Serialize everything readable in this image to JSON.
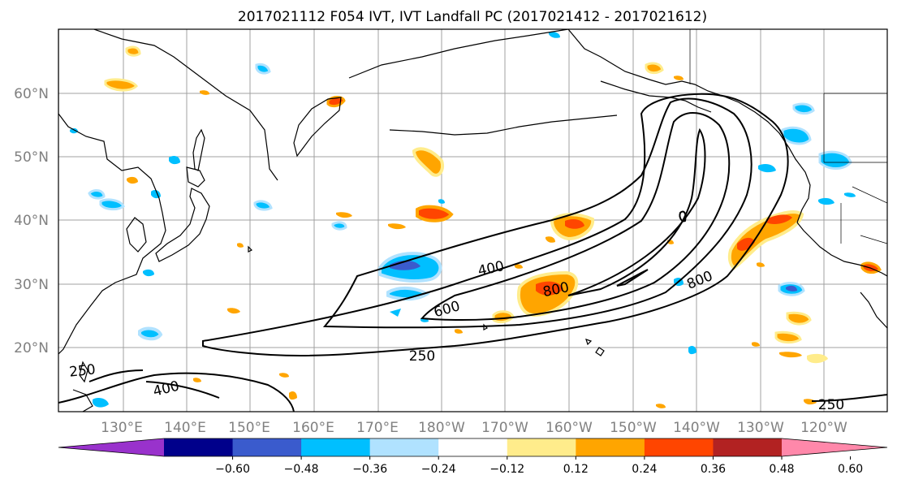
{
  "map": {
    "title": "2017021112 F054 IVT, IVT Landfall PC (2017021412 - 2017021612)",
    "lat_labels": [
      "60°N",
      "50°N",
      "40°N",
      "30°N",
      "20°N"
    ],
    "lon_labels": [
      "130°E",
      "140°E",
      "150°E",
      "160°E",
      "170°E",
      "180°W",
      "170°W",
      "160°W",
      "150°W",
      "140°W",
      "130°W",
      "120°W"
    ],
    "contour_labels": [
      "400",
      "600",
      "800",
      "800",
      "250",
      "250",
      "400",
      "250"
    ],
    "colorbar": {
      "colors": [
        "#9932cc",
        "#00008b",
        "#3a5bcd",
        "#00bfff",
        "#b0e2ff",
        "#ffffff",
        "#ffec8b",
        "#ffa500",
        "#ff4500",
        "#b22222",
        "#ff88aa"
      ],
      "tick_labels": [
        "−0.60",
        "−0.48",
        "−0.36",
        "−0.24",
        "−0.12",
        "0.12",
        "0.24",
        "0.36",
        "0.48",
        "0.60"
      ]
    }
  }
}
